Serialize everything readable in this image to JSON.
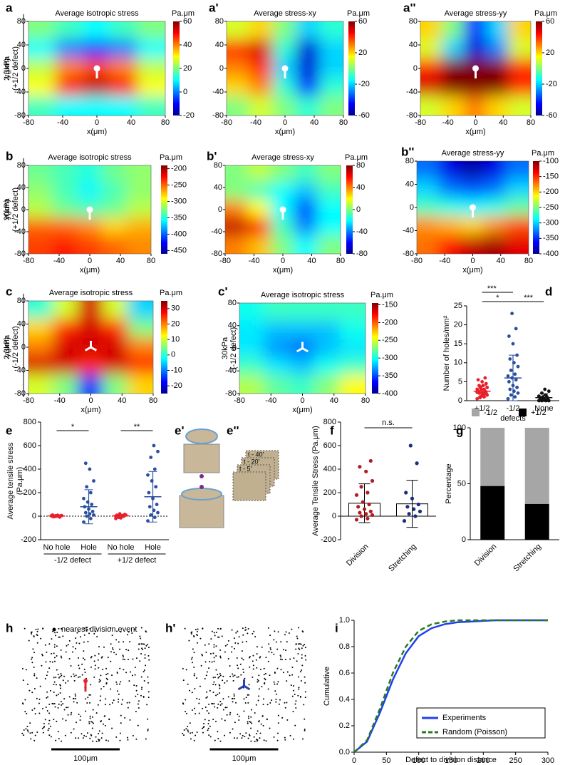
{
  "chart_data": [
    {
      "type": "heatmap",
      "label": "a",
      "title": "Average isotropic stress",
      "unit": "Pa.μm",
      "row_label": [
        "2.3kPa",
        "(+1/2 defect)"
      ],
      "xlabel": "x(μm)",
      "ylabel": "y(μm)",
      "xlim": [
        -80,
        80
      ],
      "ylim": [
        -80,
        80
      ],
      "xticks": [
        -80,
        -40,
        0,
        40,
        80
      ],
      "yticks": [
        -80,
        -40,
        0,
        40,
        80
      ],
      "clim": [
        -20,
        60
      ],
      "cticks": [
        -20,
        0,
        20,
        40,
        60
      ],
      "grid": [
        [
          20,
          15,
          10,
          15,
          20
        ],
        [
          10,
          0,
          -5,
          0,
          10
        ],
        [
          25,
          40,
          45,
          40,
          25
        ],
        [
          30,
          50,
          55,
          50,
          30
        ],
        [
          15,
          10,
          10,
          10,
          15
        ]
      ]
    },
    {
      "type": "heatmap",
      "label": "a'",
      "title": "Average stress-xy",
      "unit": "Pa.μm",
      "xlabel": "x(μm)",
      "xlim": [
        -80,
        80
      ],
      "ylim": [
        -80,
        80
      ],
      "xticks": [
        -80,
        -40,
        0,
        40,
        80
      ],
      "yticks": [
        -80,
        -40,
        0,
        40,
        80
      ],
      "clim": [
        -60,
        60
      ],
      "cticks": [
        -60,
        -20,
        20,
        60
      ],
      "grid": [
        [
          10,
          20,
          0,
          -20,
          -10
        ],
        [
          40,
          50,
          -10,
          -50,
          -20
        ],
        [
          30,
          40,
          -20,
          -50,
          -20
        ],
        [
          20,
          30,
          -10,
          -40,
          -10
        ],
        [
          0,
          10,
          0,
          -10,
          0
        ]
      ]
    },
    {
      "type": "heatmap",
      "label": "a''",
      "title": "Average stress-yy",
      "unit": "Pa.μm",
      "xlabel": "x(μm)",
      "xlim": [
        -80,
        80
      ],
      "ylim": [
        -80,
        80
      ],
      "xticks": [
        -80,
        -40,
        0,
        40,
        80
      ],
      "yticks": [
        -80,
        -40,
        0,
        40,
        80
      ],
      "clim": [
        -60,
        60
      ],
      "cticks": [
        -60,
        -20,
        20,
        60
      ],
      "grid": [
        [
          20,
          0,
          -40,
          -20,
          20
        ],
        [
          10,
          -20,
          -50,
          -30,
          10
        ],
        [
          40,
          60,
          60,
          60,
          40
        ],
        [
          50,
          70,
          70,
          70,
          40
        ],
        [
          10,
          20,
          30,
          20,
          10
        ]
      ]
    },
    {
      "type": "heatmap",
      "label": "b",
      "title": "Average isotropic stress",
      "unit": "Pa.μm",
      "row_label": [
        "30kPa",
        "(+1/2 defect)"
      ],
      "xlabel": "x(μm)",
      "ylabel": "y(μm)",
      "xlim": [
        -80,
        80
      ],
      "ylim": [
        -80,
        80
      ],
      "xticks": [
        -80,
        -40,
        0,
        40,
        80
      ],
      "yticks": [
        -80,
        -40,
        0,
        40,
        80
      ],
      "clim": [
        -460,
        -190
      ],
      "cticks": [
        -450,
        -400,
        -350,
        -300,
        -250,
        -200
      ],
      "grid": [
        [
          -330,
          -340,
          -350,
          -330,
          -320
        ],
        [
          -320,
          -340,
          -360,
          -340,
          -320
        ],
        [
          -310,
          -330,
          -340,
          -330,
          -310
        ],
        [
          -250,
          -250,
          -260,
          -280,
          -270
        ],
        [
          -240,
          -230,
          -240,
          -250,
          -260
        ]
      ]
    },
    {
      "type": "heatmap",
      "label": "b'",
      "title": "Average stress-xy",
      "unit": "Pa.μm",
      "xlabel": "x(μm)",
      "xlim": [
        -80,
        80
      ],
      "ylim": [
        -80,
        80
      ],
      "xticks": [
        -80,
        -40,
        0,
        40,
        80
      ],
      "yticks": [
        -80,
        -40,
        0,
        40,
        80
      ],
      "clim": [
        -80,
        80
      ],
      "cticks": [
        -80,
        -40,
        0,
        40,
        80
      ],
      "grid": [
        [
          0,
          10,
          0,
          -10,
          0
        ],
        [
          0,
          -10,
          -20,
          -30,
          -10
        ],
        [
          40,
          20,
          -20,
          -50,
          -20
        ],
        [
          70,
          60,
          -10,
          -40,
          -20
        ],
        [
          40,
          30,
          0,
          -20,
          0
        ]
      ]
    },
    {
      "type": "heatmap",
      "label": "b''",
      "title": "Average stress-yy",
      "unit": "Pa.μm",
      "xlabel": "x(μm)",
      "xlim": [
        -80,
        80
      ],
      "ylim": [
        -80,
        80
      ],
      "xticks": [
        -80,
        -40,
        0,
        40,
        80
      ],
      "yticks": [
        -80,
        -40,
        0,
        40,
        80
      ],
      "clim": [
        -400,
        -100
      ],
      "cticks": [
        -400,
        -350,
        -300,
        -250,
        -200,
        -150,
        -100
      ],
      "grid": [
        [
          -330,
          -370,
          -390,
          -370,
          -330
        ],
        [
          -300,
          -330,
          -340,
          -330,
          -300
        ],
        [
          -270,
          -280,
          -290,
          -280,
          -260
        ],
        [
          -180,
          -190,
          -200,
          -180,
          -160
        ],
        [
          -170,
          -140,
          -120,
          -110,
          -130
        ]
      ]
    },
    {
      "type": "heatmap",
      "label": "c",
      "title": "Average isotropic stress",
      "unit": "Pa.μm",
      "row_label": [
        "2.3kPa",
        "(-1/2 defect)"
      ],
      "xlabel": "x(μm)",
      "ylabel": "y(μm)",
      "xlim": [
        -80,
        80
      ],
      "ylim": [
        -80,
        80
      ],
      "xticks": [
        -80,
        -40,
        0,
        40,
        80
      ],
      "yticks": [
        -80,
        -40,
        0,
        40,
        80
      ],
      "clim": [
        -25,
        35
      ],
      "cticks": [
        -20,
        -10,
        0,
        10,
        20,
        30
      ],
      "grid": [
        [
          0,
          10,
          30,
          10,
          -5
        ],
        [
          15,
          25,
          30,
          25,
          5
        ],
        [
          20,
          30,
          30,
          30,
          20
        ],
        [
          30,
          30,
          25,
          30,
          25
        ],
        [
          10,
          5,
          -15,
          5,
          15
        ]
      ]
    },
    {
      "type": "heatmap",
      "label": "c'",
      "title": "Average isotropic stress",
      "unit": "Pa.μm",
      "row_label": [
        "30kPa",
        "(-1/2 defect)"
      ],
      "xlabel": "x(μm)",
      "xlim": [
        -80,
        80
      ],
      "ylim": [
        -80,
        80
      ],
      "xticks": [
        -80,
        -40,
        0,
        40,
        80
      ],
      "yticks": [
        -80,
        -40,
        0,
        40,
        80
      ],
      "clim": [
        -400,
        -145
      ],
      "cticks": [
        -400,
        -350,
        -300,
        -250,
        -200,
        -150
      ],
      "grid": [
        [
          -300,
          -290,
          -290,
          -290,
          -290
        ],
        [
          -310,
          -320,
          -320,
          -320,
          -300
        ],
        [
          -310,
          -330,
          -340,
          -320,
          -310
        ],
        [
          -290,
          -310,
          -320,
          -300,
          -290
        ],
        [
          -260,
          -280,
          -290,
          -270,
          -240
        ]
      ]
    },
    {
      "type": "dotplot",
      "label": "d",
      "ylabel": "Number of holes/mm²",
      "xlabel": "defects",
      "ylim": [
        0,
        25
      ],
      "yticks": [
        0,
        5,
        10,
        15,
        20,
        25
      ],
      "significance": [
        "***",
        "*",
        "***"
      ],
      "groups": [
        {
          "name": "+1/2",
          "color": "#e8202a",
          "values": [
            0.5,
            1,
            1,
            1.5,
            1.5,
            2,
            2,
            2,
            2.5,
            2.5,
            3,
            3,
            3,
            3.5,
            3.5,
            4,
            4,
            4.5,
            5,
            5.5,
            6,
            1.2,
            2.2,
            1.8,
            0.8
          ],
          "mean": 2.5,
          "sd": 1.5
        },
        {
          "name": "-1/2",
          "color": "#2a4fa0",
          "values": [
            0.5,
            1,
            1.5,
            2,
            2.5,
            3,
            3.5,
            4,
            5,
            5.5,
            6,
            6.5,
            7,
            8,
            9,
            10,
            11,
            12,
            15,
            17,
            19,
            23
          ],
          "mean": 6,
          "sd": 6
        },
        {
          "name": "None",
          "color": "#111111",
          "values": [
            0,
            0,
            0,
            0,
            0.2,
            0.3,
            0.5,
            0.5,
            0.8,
            1,
            1,
            1.2,
            1.5,
            2,
            2.5,
            3
          ],
          "mean": 0.8,
          "sd": 1
        }
      ]
    },
    {
      "type": "dotplot",
      "label": "e",
      "ylabel": [
        "Average tensile stress",
        "(Pa.μm)"
      ],
      "ylim": [
        -200,
        800
      ],
      "yticks": [
        -200,
        0,
        200,
        400,
        600,
        800
      ],
      "significance": [
        "*",
        "**"
      ],
      "group_labels": [
        "-1/2 defect",
        "+1/2 defect"
      ],
      "groups": [
        {
          "name": "No hole",
          "color": "#e8202a",
          "values": [
            0,
            2,
            -3,
            5,
            8,
            -5,
            3,
            0,
            10,
            -8,
            4,
            6
          ],
          "mean": 2,
          "sd": 5
        },
        {
          "name": "Hole",
          "color": "#2a4fa0",
          "values": [
            -50,
            -20,
            0,
            10,
            20,
            30,
            40,
            60,
            80,
            100,
            120,
            150,
            200,
            250,
            300,
            400,
            450
          ],
          "mean": 80,
          "sd": 145
        },
        {
          "name": "No hole",
          "color": "#e8202a",
          "values": [
            0,
            5,
            -10,
            10,
            -5,
            3,
            15,
            -15,
            8,
            0,
            20,
            -20,
            6
          ],
          "mean": 3,
          "sd": 12
        },
        {
          "name": "Hole",
          "color": "#2a4fa0",
          "values": [
            -40,
            -10,
            10,
            30,
            50,
            80,
            100,
            150,
            200,
            250,
            300,
            350,
            400,
            500,
            550,
            600
          ],
          "mean": 165,
          "sd": 215
        }
      ]
    },
    {
      "type": "diagram",
      "label": "e'"
    },
    {
      "type": "diagram",
      "label": "e''",
      "frames": [
        "t - 40'",
        "t - 20'",
        "t - 5'"
      ]
    },
    {
      "type": "barplot",
      "label": "f",
      "ylabel": "Average Tensile Stress (Pa.μm)",
      "ylim": [
        -200,
        800
      ],
      "yticks": [
        -200,
        0,
        200,
        400,
        600,
        800
      ],
      "significance": [
        "n.s."
      ],
      "groups": [
        {
          "name": "Division",
          "color": "#b01c22",
          "values": [
            -30,
            -20,
            0,
            10,
            20,
            30,
            40,
            60,
            80,
            100,
            120,
            180,
            200,
            250,
            300,
            380,
            420,
            470
          ],
          "mean": 110,
          "sd": 165
        },
        {
          "name": "Stretching",
          "color": "#1c2f7a",
          "values": [
            -40,
            0,
            20,
            40,
            60,
            80,
            100,
            150,
            200,
            450,
            600
          ],
          "mean": 105,
          "sd": 200
        }
      ]
    },
    {
      "type": "stacked_bar",
      "label": "g",
      "ylabel": "Percentage",
      "categories": [
        "Division",
        "Stretching"
      ],
      "ylim": [
        0,
        100
      ],
      "yticks": [
        0,
        50,
        100
      ],
      "series": [
        {
          "name": "-1/2",
          "color": "#a6a6a6",
          "values": [
            52,
            68
          ]
        },
        {
          "name": "+1/2",
          "color": "#000000",
          "values": [
            48,
            32
          ]
        }
      ]
    },
    {
      "type": "dotmap",
      "label": "h",
      "legend": "nearest division event",
      "scalebar": "100μm",
      "color": "#e8202a"
    },
    {
      "type": "dotmap",
      "label": "h'",
      "scalebar": "100μm",
      "color": "#2a3fb0"
    },
    {
      "type": "line",
      "label": "i",
      "xlabel": "Defect to division distance",
      "ylabel": "Cumulative",
      "xlim": [
        0,
        300
      ],
      "ylim": [
        0,
        1
      ],
      "xticks": [
        0,
        50,
        100,
        150,
        200,
        250,
        300
      ],
      "yticks": [
        {
          "value": 0,
          "label": "0.0"
        },
        {
          "value": 0.2,
          "label": "0.2"
        },
        {
          "value": 0.4,
          "label": "0.4"
        },
        {
          "value": 0.6,
          "label": "0.6"
        },
        {
          "value": 0.8,
          "label": "0.8"
        },
        {
          "value": 1,
          "label": "1.0"
        }
      ],
      "x": [
        0,
        20,
        40,
        60,
        80,
        100,
        120,
        140,
        160,
        180,
        200,
        220,
        240,
        260,
        280,
        300
      ],
      "series": [
        {
          "name": "Experiments",
          "color": "#1f3ff0",
          "values": [
            0,
            0.08,
            0.3,
            0.55,
            0.75,
            0.88,
            0.94,
            0.97,
            0.985,
            0.99,
            0.995,
            1,
            1,
            1,
            1,
            1
          ]
        },
        {
          "name": "Random (Poisson)",
          "color": "#2a7a1e",
          "dash": true,
          "values": [
            0,
            0.09,
            0.33,
            0.6,
            0.8,
            0.92,
            0.97,
            0.99,
            1,
            1,
            1,
            1,
            1,
            1,
            1,
            1
          ]
        }
      ]
    }
  ]
}
